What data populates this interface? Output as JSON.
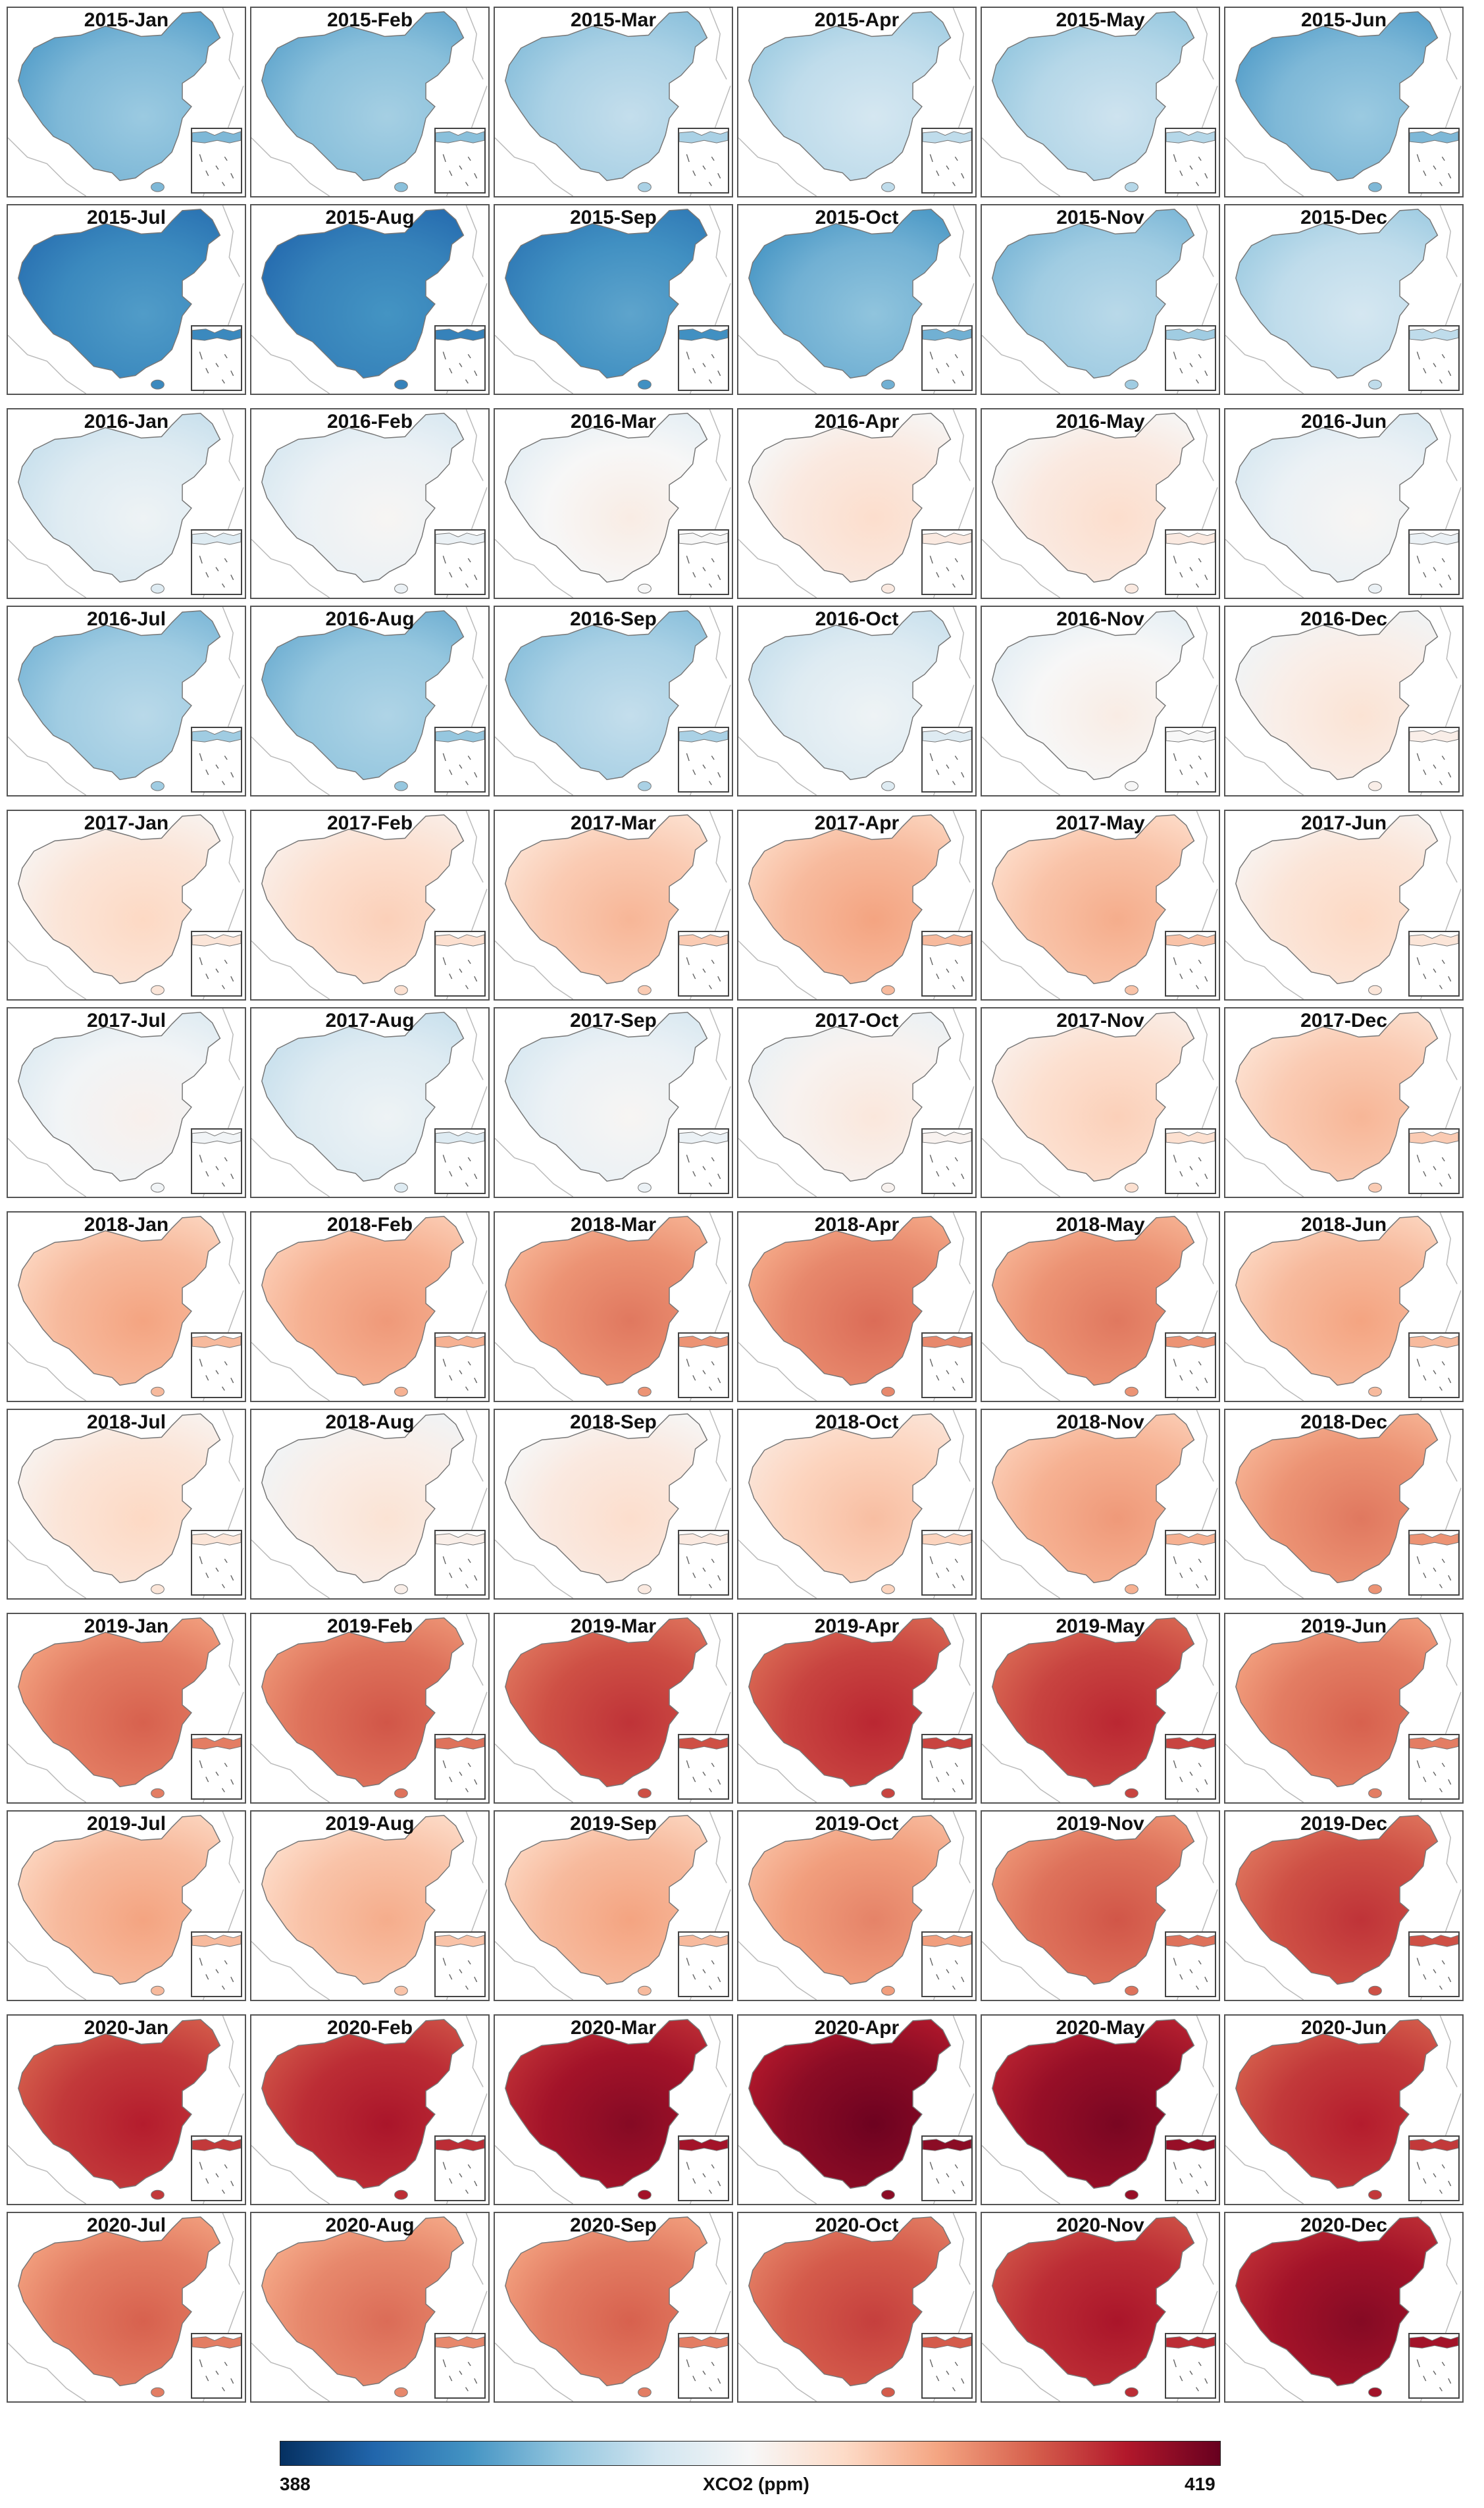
{
  "colorbar": {
    "label": "XCO2 (ppm)",
    "min_label": "388",
    "max_label": "419",
    "min": 388,
    "max": 419,
    "colormap": [
      "#053061",
      "#2166ac",
      "#4393c3",
      "#92c5de",
      "#d1e5f0",
      "#f7f7f7",
      "#fddbc7",
      "#f4a582",
      "#d6604d",
      "#b2182b",
      "#67001f"
    ]
  },
  "years": [
    {
      "year": "2015",
      "panels": [
        {
          "title": "2015-Jan",
          "value": 396.5
        },
        {
          "title": "2015-Feb",
          "value": 397.0
        },
        {
          "title": "2015-Mar",
          "value": 398.5
        },
        {
          "title": "2015-Apr",
          "value": 399.5
        },
        {
          "title": "2015-May",
          "value": 399.0
        },
        {
          "title": "2015-Jun",
          "value": 396.5
        },
        {
          "title": "2015-Jul",
          "value": 393.5
        },
        {
          "title": "2015-Aug",
          "value": 393.0
        },
        {
          "title": "2015-Sep",
          "value": 394.0
        },
        {
          "title": "2015-Oct",
          "value": 396.0
        },
        {
          "title": "2015-Nov",
          "value": 398.0
        },
        {
          "title": "2015-Dec",
          "value": 399.5
        }
      ]
    },
    {
      "year": "2016",
      "panels": [
        {
          "title": "2016-Jan",
          "value": 401.5
        },
        {
          "title": "2016-Feb",
          "value": 402.5
        },
        {
          "title": "2016-Mar",
          "value": 403.5
        },
        {
          "title": "2016-Apr",
          "value": 405.0
        },
        {
          "title": "2016-May",
          "value": 405.0
        },
        {
          "title": "2016-Jun",
          "value": 402.5
        },
        {
          "title": "2016-Jul",
          "value": 398.0
        },
        {
          "title": "2016-Aug",
          "value": 397.5
        },
        {
          "title": "2016-Sep",
          "value": 398.5
        },
        {
          "title": "2016-Oct",
          "value": 401.5
        },
        {
          "title": "2016-Nov",
          "value": 403.5
        },
        {
          "title": "2016-Dec",
          "value": 404.5
        }
      ]
    },
    {
      "year": "2017",
      "panels": [
        {
          "title": "2017-Jan",
          "value": 405.5
        },
        {
          "title": "2017-Feb",
          "value": 406.0
        },
        {
          "title": "2017-Mar",
          "value": 407.5
        },
        {
          "title": "2017-Apr",
          "value": 408.5
        },
        {
          "title": "2017-May",
          "value": 408.0
        },
        {
          "title": "2017-Jun",
          "value": 405.5
        },
        {
          "title": "2017-Jul",
          "value": 403.0
        },
        {
          "title": "2017-Aug",
          "value": 401.5
        },
        {
          "title": "2017-Sep",
          "value": 402.5
        },
        {
          "title": "2017-Oct",
          "value": 404.0
        },
        {
          "title": "2017-Nov",
          "value": 406.0
        },
        {
          "title": "2017-Dec",
          "value": 407.5
        }
      ]
    },
    {
      "year": "2018",
      "panels": [
        {
          "title": "2018-Jan",
          "value": 408.5
        },
        {
          "title": "2018-Feb",
          "value": 409.0
        },
        {
          "title": "2018-Mar",
          "value": 410.5
        },
        {
          "title": "2018-Apr",
          "value": 411.0
        },
        {
          "title": "2018-May",
          "value": 410.5
        },
        {
          "title": "2018-Jun",
          "value": 408.5
        },
        {
          "title": "2018-Jul",
          "value": 405.5
        },
        {
          "title": "2018-Aug",
          "value": 404.5
        },
        {
          "title": "2018-Sep",
          "value": 405.0
        },
        {
          "title": "2018-Oct",
          "value": 407.0
        },
        {
          "title": "2018-Nov",
          "value": 409.0
        },
        {
          "title": "2018-Dec",
          "value": 410.5
        }
      ]
    },
    {
      "year": "2019",
      "panels": [
        {
          "title": "2019-Jan",
          "value": 411.5
        },
        {
          "title": "2019-Feb",
          "value": 412.0
        },
        {
          "title": "2019-Mar",
          "value": 413.5
        },
        {
          "title": "2019-Apr",
          "value": 414.0
        },
        {
          "title": "2019-May",
          "value": 414.0
        },
        {
          "title": "2019-Jun",
          "value": 411.5
        },
        {
          "title": "2019-Jul",
          "value": 408.5
        },
        {
          "title": "2019-Aug",
          "value": 408.0
        },
        {
          "title": "2019-Sep",
          "value": 408.5
        },
        {
          "title": "2019-Oct",
          "value": 410.0
        },
        {
          "title": "2019-Nov",
          "value": 412.0
        },
        {
          "title": "2019-Dec",
          "value": 413.5
        }
      ]
    },
    {
      "year": "2020",
      "panels": [
        {
          "title": "2020-Jan",
          "value": 414.5
        },
        {
          "title": "2020-Feb",
          "value": 415.0
        },
        {
          "title": "2020-Mar",
          "value": 416.5
        },
        {
          "title": "2020-Apr",
          "value": 417.5
        },
        {
          "title": "2020-May",
          "value": 417.0
        },
        {
          "title": "2020-Jun",
          "value": 414.5
        },
        {
          "title": "2020-Jul",
          "value": 411.5
        },
        {
          "title": "2020-Aug",
          "value": 411.0
        },
        {
          "title": "2020-Sep",
          "value": 411.5
        },
        {
          "title": "2020-Oct",
          "value": 413.0
        },
        {
          "title": "2020-Nov",
          "value": 415.0
        },
        {
          "title": "2020-Dec",
          "value": 416.5
        }
      ]
    }
  ]
}
